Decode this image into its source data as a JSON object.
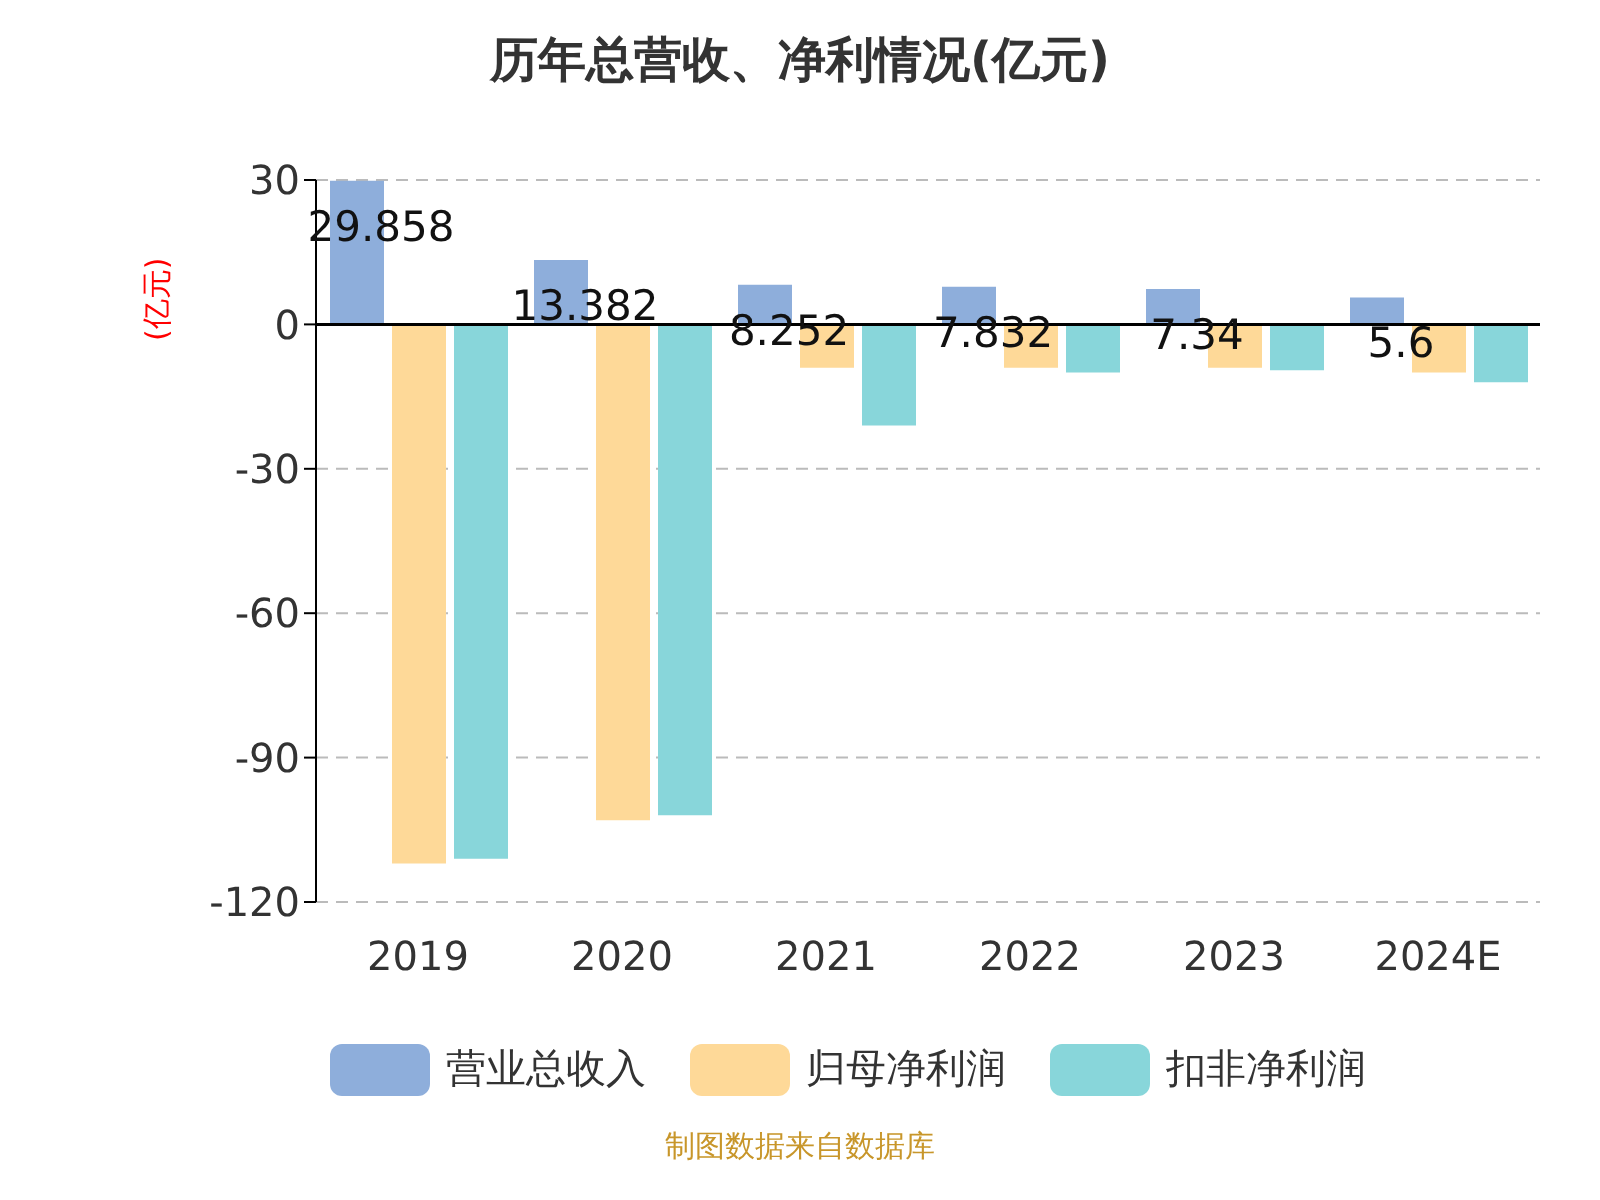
{
  "chart_data": {
    "type": "bar",
    "title": "历年总营收、净利情况(亿元)",
    "ylabel": "(亿元)",
    "categories": [
      "2019",
      "2020",
      "2021",
      "2022",
      "2023",
      "2024E"
    ],
    "series": [
      {
        "name": "营业总收入",
        "color": "#8eaedb",
        "values": [
          29.858,
          13.382,
          8.252,
          7.832,
          7.34,
          5.6
        ],
        "value_labels": [
          "29.858",
          "13.382",
          "8.252",
          "7.832",
          "7.34",
          "5.6"
        ]
      },
      {
        "name": "归母净利润",
        "color": "#fed998",
        "values": [
          -112,
          -103,
          -9,
          -9,
          -9,
          -10
        ]
      },
      {
        "name": "扣非净利润",
        "color": "#88d6da",
        "values": [
          -111,
          -102,
          -21,
          -10,
          -9.5,
          -12
        ]
      }
    ],
    "ylim": [
      -120,
      30
    ],
    "yticks": [
      -120,
      -90,
      -60,
      -30,
      0,
      30
    ],
    "grid": "y",
    "legend": "bottom",
    "annotations": [
      "制图数据来自数据库"
    ]
  }
}
